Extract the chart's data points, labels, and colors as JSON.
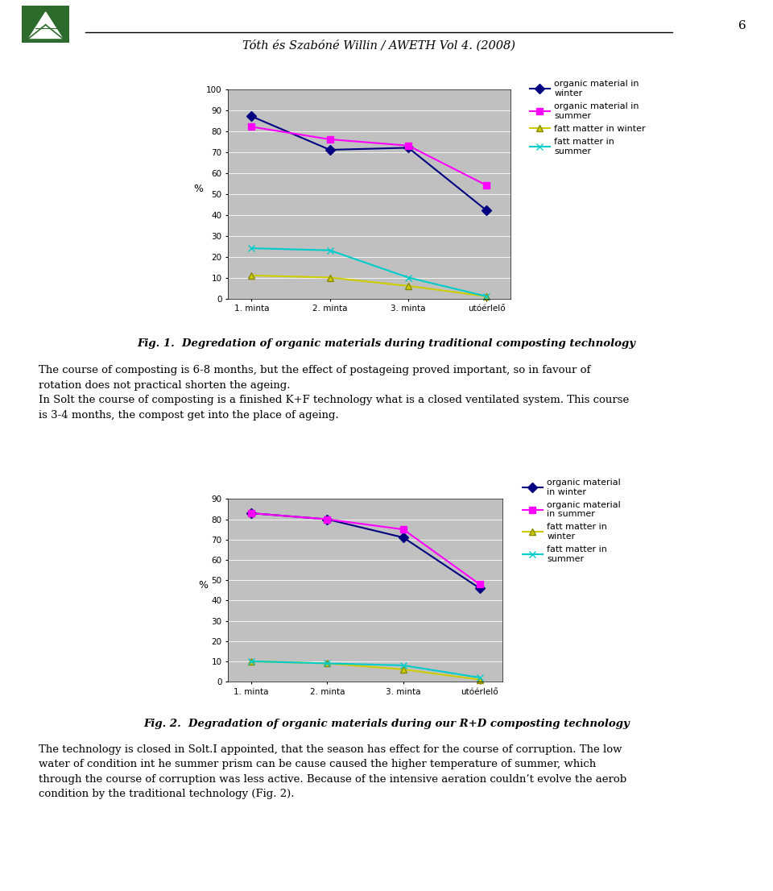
{
  "page_bg": "#ffffff",
  "header_text": "Tóth és Szabóné Willin / AWETH Vol 4. (2008)",
  "page_number": "6",
  "chart1": {
    "ylim": [
      0,
      100
    ],
    "yticks": [
      0,
      10,
      20,
      30,
      40,
      50,
      60,
      70,
      80,
      90,
      100
    ],
    "xtick_labels": [
      "1. minta",
      "2. minta",
      "3. minta",
      "utóérlelő"
    ],
    "ylabel": "%",
    "bg_color": "#c0c0c0",
    "series": [
      {
        "label": "organic material in\nwinter",
        "color": "#000080",
        "marker": "D",
        "values": [
          87,
          71,
          72,
          42
        ]
      },
      {
        "label": "organic material in\nsummer",
        "color": "#ff00ff",
        "marker": "s",
        "values": [
          82,
          76,
          73,
          54
        ]
      },
      {
        "label": "fatt matter in winter",
        "color": "#cccc00",
        "marker": "^",
        "values": [
          11,
          10,
          6,
          1
        ]
      },
      {
        "label": "fatt matter in\nsummer",
        "color": "#00cccc",
        "marker": "x",
        "values": [
          24,
          23,
          10,
          1
        ]
      }
    ]
  },
  "fig1_caption": "Fig. 1.  Degredation of organic materials during traditional composting technology",
  "body_text1_lines": [
    "The course of composting is 6-8 months, but the effect of postageing proved important, so in favour of",
    "rotation does not practical shorten the ageing.",
    "In Solt the course of composting is a finished K+F technology what is a closed ventilated system. This course",
    "is 3-4 months, the compost get into the place of ageing."
  ],
  "chart2": {
    "ylim": [
      0,
      90
    ],
    "yticks": [
      0,
      10,
      20,
      30,
      40,
      50,
      60,
      70,
      80,
      90
    ],
    "xtick_labels": [
      "1. minta",
      "2. minta",
      "3. minta",
      "utóérlelő"
    ],
    "ylabel": "%",
    "bg_color": "#c0c0c0",
    "series": [
      {
        "label": "organic material\nin winter",
        "color": "#000080",
        "marker": "D",
        "values": [
          83,
          80,
          71,
          46
        ]
      },
      {
        "label": "organic material\nin summer",
        "color": "#ff00ff",
        "marker": "s",
        "values": [
          83,
          80,
          75,
          48
        ]
      },
      {
        "label": "fatt matter in\nwinter",
        "color": "#cccc00",
        "marker": "^",
        "values": [
          10,
          9,
          6,
          1
        ]
      },
      {
        "label": "fatt matter in\nsummer",
        "color": "#00cccc",
        "marker": "x",
        "values": [
          10,
          9,
          8,
          2
        ]
      }
    ]
  },
  "fig2_caption": "Fig. 2.  Degradation of organic materials during our R+D composting technology",
  "body_text2_lines": [
    "The technology is closed in Solt.I appointed, that the season has effect for the course of corruption. The low",
    "water of condition int he summer prism can be cause caused the higher temperature of summer, which",
    "through the course of corruption was less active. Because of the intensive aeration couldn’t evolve the aerob",
    "condition by the traditional technology (Fig. 2)."
  ]
}
